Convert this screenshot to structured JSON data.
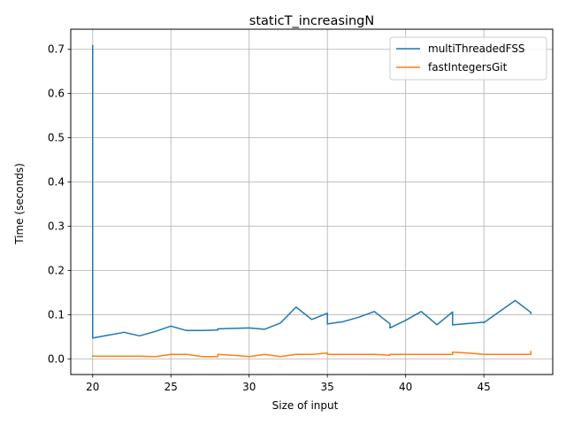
{
  "chart_data": {
    "type": "line",
    "title": "staticT_increasingN",
    "xlabel": "Size of input",
    "ylabel": "Time (seconds)",
    "xlim": [
      18.6,
      49.4
    ],
    "ylim": [
      -0.0355,
      0.7455
    ],
    "xticks": [
      20,
      25,
      30,
      35,
      40,
      45
    ],
    "yticks": [
      0.0,
      0.1,
      0.2,
      0.3,
      0.4,
      0.5,
      0.6,
      0.7
    ],
    "xtick_labels": [
      "20",
      "25",
      "30",
      "35",
      "40",
      "45"
    ],
    "ytick_labels": [
      "0.0",
      "0.1",
      "0.2",
      "0.3",
      "0.4",
      "0.5",
      "0.6",
      "0.7"
    ],
    "grid": true,
    "legend_position": "top-right",
    "series": [
      {
        "name": "multiThreadedFSS",
        "color": "#1f77b4",
        "x": [
          20,
          20,
          20,
          22,
          23,
          24,
          25,
          26,
          27,
          28,
          28,
          29,
          30,
          31,
          32,
          33,
          34,
          35,
          35,
          36,
          37,
          38,
          39,
          39,
          40,
          41,
          42,
          43,
          43,
          44,
          45,
          45,
          46,
          47,
          48,
          48
        ],
        "y": [
          0.71,
          0.5,
          0.047,
          0.06,
          0.052,
          0.062,
          0.074,
          0.064,
          0.064,
          0.065,
          0.068,
          0.069,
          0.07,
          0.067,
          0.081,
          0.117,
          0.089,
          0.103,
          0.079,
          0.084,
          0.094,
          0.107,
          0.079,
          0.07,
          0.087,
          0.107,
          0.077,
          0.106,
          0.077,
          0.08,
          0.083,
          0.082,
          0.107,
          0.132,
          0.105,
          0.101
        ]
      },
      {
        "name": "fastIntegersGit",
        "color": "#ff7f0e",
        "x": [
          20,
          20,
          21,
          22,
          23,
          24,
          25,
          26,
          27,
          28,
          28,
          29,
          30,
          31,
          32,
          33,
          34,
          35,
          35,
          36,
          37,
          38,
          39,
          39,
          40,
          41,
          42,
          43,
          43,
          44,
          45,
          46,
          47,
          48,
          48
        ],
        "y": [
          0.008,
          0.006,
          0.006,
          0.006,
          0.006,
          0.005,
          0.01,
          0.01,
          0.005,
          0.005,
          0.01,
          0.008,
          0.005,
          0.01,
          0.005,
          0.01,
          0.01,
          0.013,
          0.01,
          0.01,
          0.01,
          0.01,
          0.008,
          0.01,
          0.01,
          0.01,
          0.01,
          0.01,
          0.015,
          0.013,
          0.01,
          0.01,
          0.01,
          0.01,
          0.018
        ]
      }
    ]
  }
}
